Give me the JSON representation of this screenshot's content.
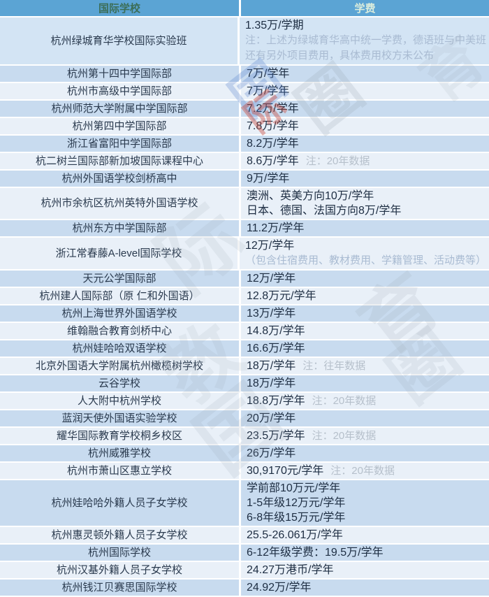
{
  "table": {
    "headers": [
      {
        "label": "国际学校"
      },
      {
        "label": "学费"
      }
    ],
    "rows": [
      {
        "school": "杭州绿城育华学校国际实验班",
        "fee": "1.35万/学期",
        "note_lines": [
          "注：上述为绿城育华高中统一学费，德语班与中美班",
          "还有另外项目费用，具体费用校方未公布"
        ]
      },
      {
        "school": "杭州第十四中学国际部",
        "fee": "7万/学年"
      },
      {
        "school": "杭州市高级中学国际部",
        "fee": "7万/学年"
      },
      {
        "school": "杭州师范大学附属中学国际部",
        "fee": "7.2万/学年"
      },
      {
        "school": "杭州第四中学国际部",
        "fee": "7.8万/学年"
      },
      {
        "school": "浙江省富阳中学国际部",
        "fee": "8.2万/学年"
      },
      {
        "school": "杭二树兰国际部新加坡国际课程中心",
        "fee": "8.6万/学年",
        "note": "注：20年数据"
      },
      {
        "school": "杭州外国语学校剑桥高中",
        "fee": "9万/学年"
      },
      {
        "school": "杭州市余杭区杭州英特外国语学校",
        "fee_lines": [
          "澳洲、英美方向10万/学年",
          "日本、德国、法国方向8万/学年"
        ]
      },
      {
        "school": "杭州东方中学国际部",
        "fee": "11.2万/学年"
      },
      {
        "school": "浙江常春藤A-level国际学校",
        "fee": "12万/学年",
        "note_lines": [
          "（包含住宿费用、教材费用、学籍管理、活动费等）"
        ]
      },
      {
        "school": "天元公学国际部",
        "fee": "12万/学年"
      },
      {
        "school": "杭州建人国际部（原 仁和外国语）",
        "fee": "12.8万元/学年"
      },
      {
        "school": "杭州上海世界外国语学校",
        "fee": "13万/学年"
      },
      {
        "school": "维翰融合教育剑桥中心",
        "fee": "14.8万/学年"
      },
      {
        "school": "杭州娃哈哈双语学校",
        "fee": "16.6万/学年"
      },
      {
        "school": "北京外国语大学附属杭州橄榄树学校",
        "fee": "18万/学年",
        "note": "注：往年数据"
      },
      {
        "school": "云谷学校",
        "fee": "18万/学年"
      },
      {
        "school": "人大附中杭州学校",
        "fee": "18.8万/学年",
        "note": "注：20年数据"
      },
      {
        "school": "蓝润天使外国语实验学校",
        "fee": "20万/学年"
      },
      {
        "school": "耀华国际教育学校桐乡校区",
        "fee": "23.5万/学年",
        "note": "注：20年数据"
      },
      {
        "school": "杭州威雅学校",
        "fee": "26万/学年"
      },
      {
        "school": "杭州市萧山区惠立学校",
        "fee": "30,9170元/学年",
        "note": "注：20年数据"
      },
      {
        "school": "杭州娃哈哈外籍人员子女学校",
        "fee_lines": [
          "学前部10万元/学年",
          "1-5年级12万元/学年",
          "6-8年级15万元/学年"
        ]
      },
      {
        "school": "杭州惠灵顿外籍人员子女学校",
        "fee": "25.5-26.061万/学年"
      },
      {
        "school": "杭州国际学校",
        "fee": "6-12年级学费：19.5万/学年"
      },
      {
        "school": "杭州汉基外籍人员子女学校",
        "fee": "24.27万港币/学年"
      },
      {
        "school": "杭州钱江贝赛思国际学校",
        "fee": "24.92万/学年"
      }
    ]
  },
  "colors": {
    "header_bg": "#5ba4d4",
    "row_blue": "#c8dbef",
    "row_white": "#e9f0f8",
    "fee_text": "#1d2d42",
    "note_text": "#b6c0cb",
    "watermark_gray": "#9aa6b2",
    "watermark_red": "#c84437",
    "watermark_blue": "#4a79c9"
  },
  "watermark": {
    "text": "杭州国际教育圈",
    "pieces": [
      {
        "ch": "圈",
        "tone": "gray",
        "pos": "w1"
      },
      {
        "ch": "国",
        "tone": "blue",
        "pos": "w2"
      },
      {
        "ch": "际",
        "tone": "red",
        "pos": "w3"
      },
      {
        "ch": "际",
        "tone": "gray",
        "pos": "w4"
      },
      {
        "ch": "育",
        "tone": "gray",
        "pos": "w5"
      },
      {
        "ch": "教",
        "tone": "gray",
        "pos": "w6"
      },
      {
        "ch": "国",
        "tone": "gray",
        "pos": "w7"
      },
      {
        "ch": "圈",
        "tone": "gray",
        "pos": "w8"
      },
      {
        "ch": "育",
        "tone": "gray",
        "pos": "w9"
      }
    ]
  }
}
